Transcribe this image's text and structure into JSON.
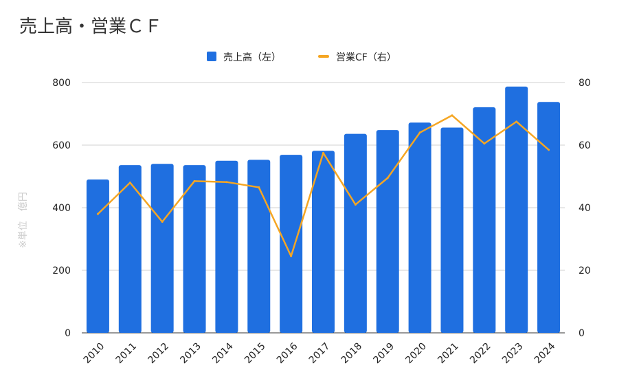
{
  "chart_data": {
    "type": "bar",
    "title": "売上高・営業ＣＦ",
    "categories": [
      "2010",
      "2011",
      "2012",
      "2013",
      "2014",
      "2015",
      "2016",
      "2017",
      "2018",
      "2019",
      "2020",
      "2021",
      "2022",
      "2023",
      "2024"
    ],
    "series": [
      {
        "name": "売上高（左）",
        "type": "bar",
        "axis": "left",
        "color": "#1f6fe0",
        "values": [
          490,
          536,
          540,
          536,
          550,
          553,
          569,
          582,
          636,
          648,
          672,
          656,
          721,
          787,
          738
        ]
      },
      {
        "name": "営業CF（右）",
        "type": "line",
        "axis": "right",
        "color": "#f5a623",
        "values": [
          38,
          48,
          35.5,
          48.5,
          48.2,
          46.5,
          24.5,
          57.5,
          41,
          49.5,
          64,
          69.5,
          60.5,
          67.5,
          58.5
        ]
      }
    ],
    "ylabel": "※単位　億円",
    "ylim": [
      0,
      800
    ],
    "ylim_right": [
      0,
      80
    ],
    "yticks": [
      "0",
      "200",
      "400",
      "600",
      "800"
    ],
    "yticks_right": [
      "0",
      "20",
      "40",
      "60",
      "80"
    ],
    "grid": true,
    "legend": "top-center"
  }
}
